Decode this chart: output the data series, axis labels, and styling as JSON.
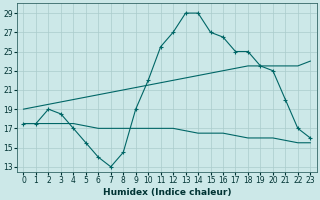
{
  "xlabel": "Humidex (Indice chaleur)",
  "background_color": "#cce8e8",
  "grid_color": "#aacccc",
  "line_color": "#006666",
  "xlim": [
    -0.5,
    23.5
  ],
  "ylim": [
    12.5,
    30
  ],
  "xticks": [
    0,
    1,
    2,
    3,
    4,
    5,
    6,
    7,
    8,
    9,
    10,
    11,
    12,
    13,
    14,
    15,
    16,
    17,
    18,
    19,
    20,
    21,
    22,
    23
  ],
  "yticks": [
    13,
    15,
    17,
    19,
    21,
    23,
    25,
    27,
    29
  ],
  "line1_x": [
    0,
    1,
    2,
    3,
    4,
    5,
    6,
    7,
    8,
    9,
    10,
    11,
    12,
    13,
    14,
    15,
    16,
    17,
    18,
    19,
    20,
    21,
    22,
    23
  ],
  "line1_y": [
    17.5,
    17.5,
    19.0,
    18.5,
    17.0,
    15.5,
    14.0,
    13.0,
    14.5,
    19.0,
    22.0,
    25.5,
    27.0,
    29.0,
    29.0,
    27.0,
    26.5,
    25.0,
    25.0,
    23.5,
    23.0,
    20.0,
    17.0,
    16.0
  ],
  "line2_x": [
    0,
    23
  ],
  "line2_y": [
    19.0,
    24.0
  ],
  "line3_x": [
    0,
    23
  ],
  "line3_y": [
    17.5,
    15.5
  ],
  "line2_mid_x": [
    0,
    2,
    4,
    6,
    8,
    10,
    12,
    14,
    16,
    18,
    20,
    22,
    23
  ],
  "line2_mid_y": [
    19.0,
    19.5,
    20.0,
    20.5,
    21.0,
    21.5,
    22.0,
    22.5,
    23.0,
    23.5,
    23.5,
    23.5,
    24.0
  ],
  "line3_mid_x": [
    0,
    2,
    4,
    6,
    8,
    10,
    12,
    14,
    16,
    18,
    20,
    22,
    23
  ],
  "line3_mid_y": [
    17.5,
    17.5,
    17.5,
    17.0,
    17.0,
    17.0,
    17.0,
    16.5,
    16.5,
    16.0,
    16.0,
    15.5,
    15.5
  ]
}
